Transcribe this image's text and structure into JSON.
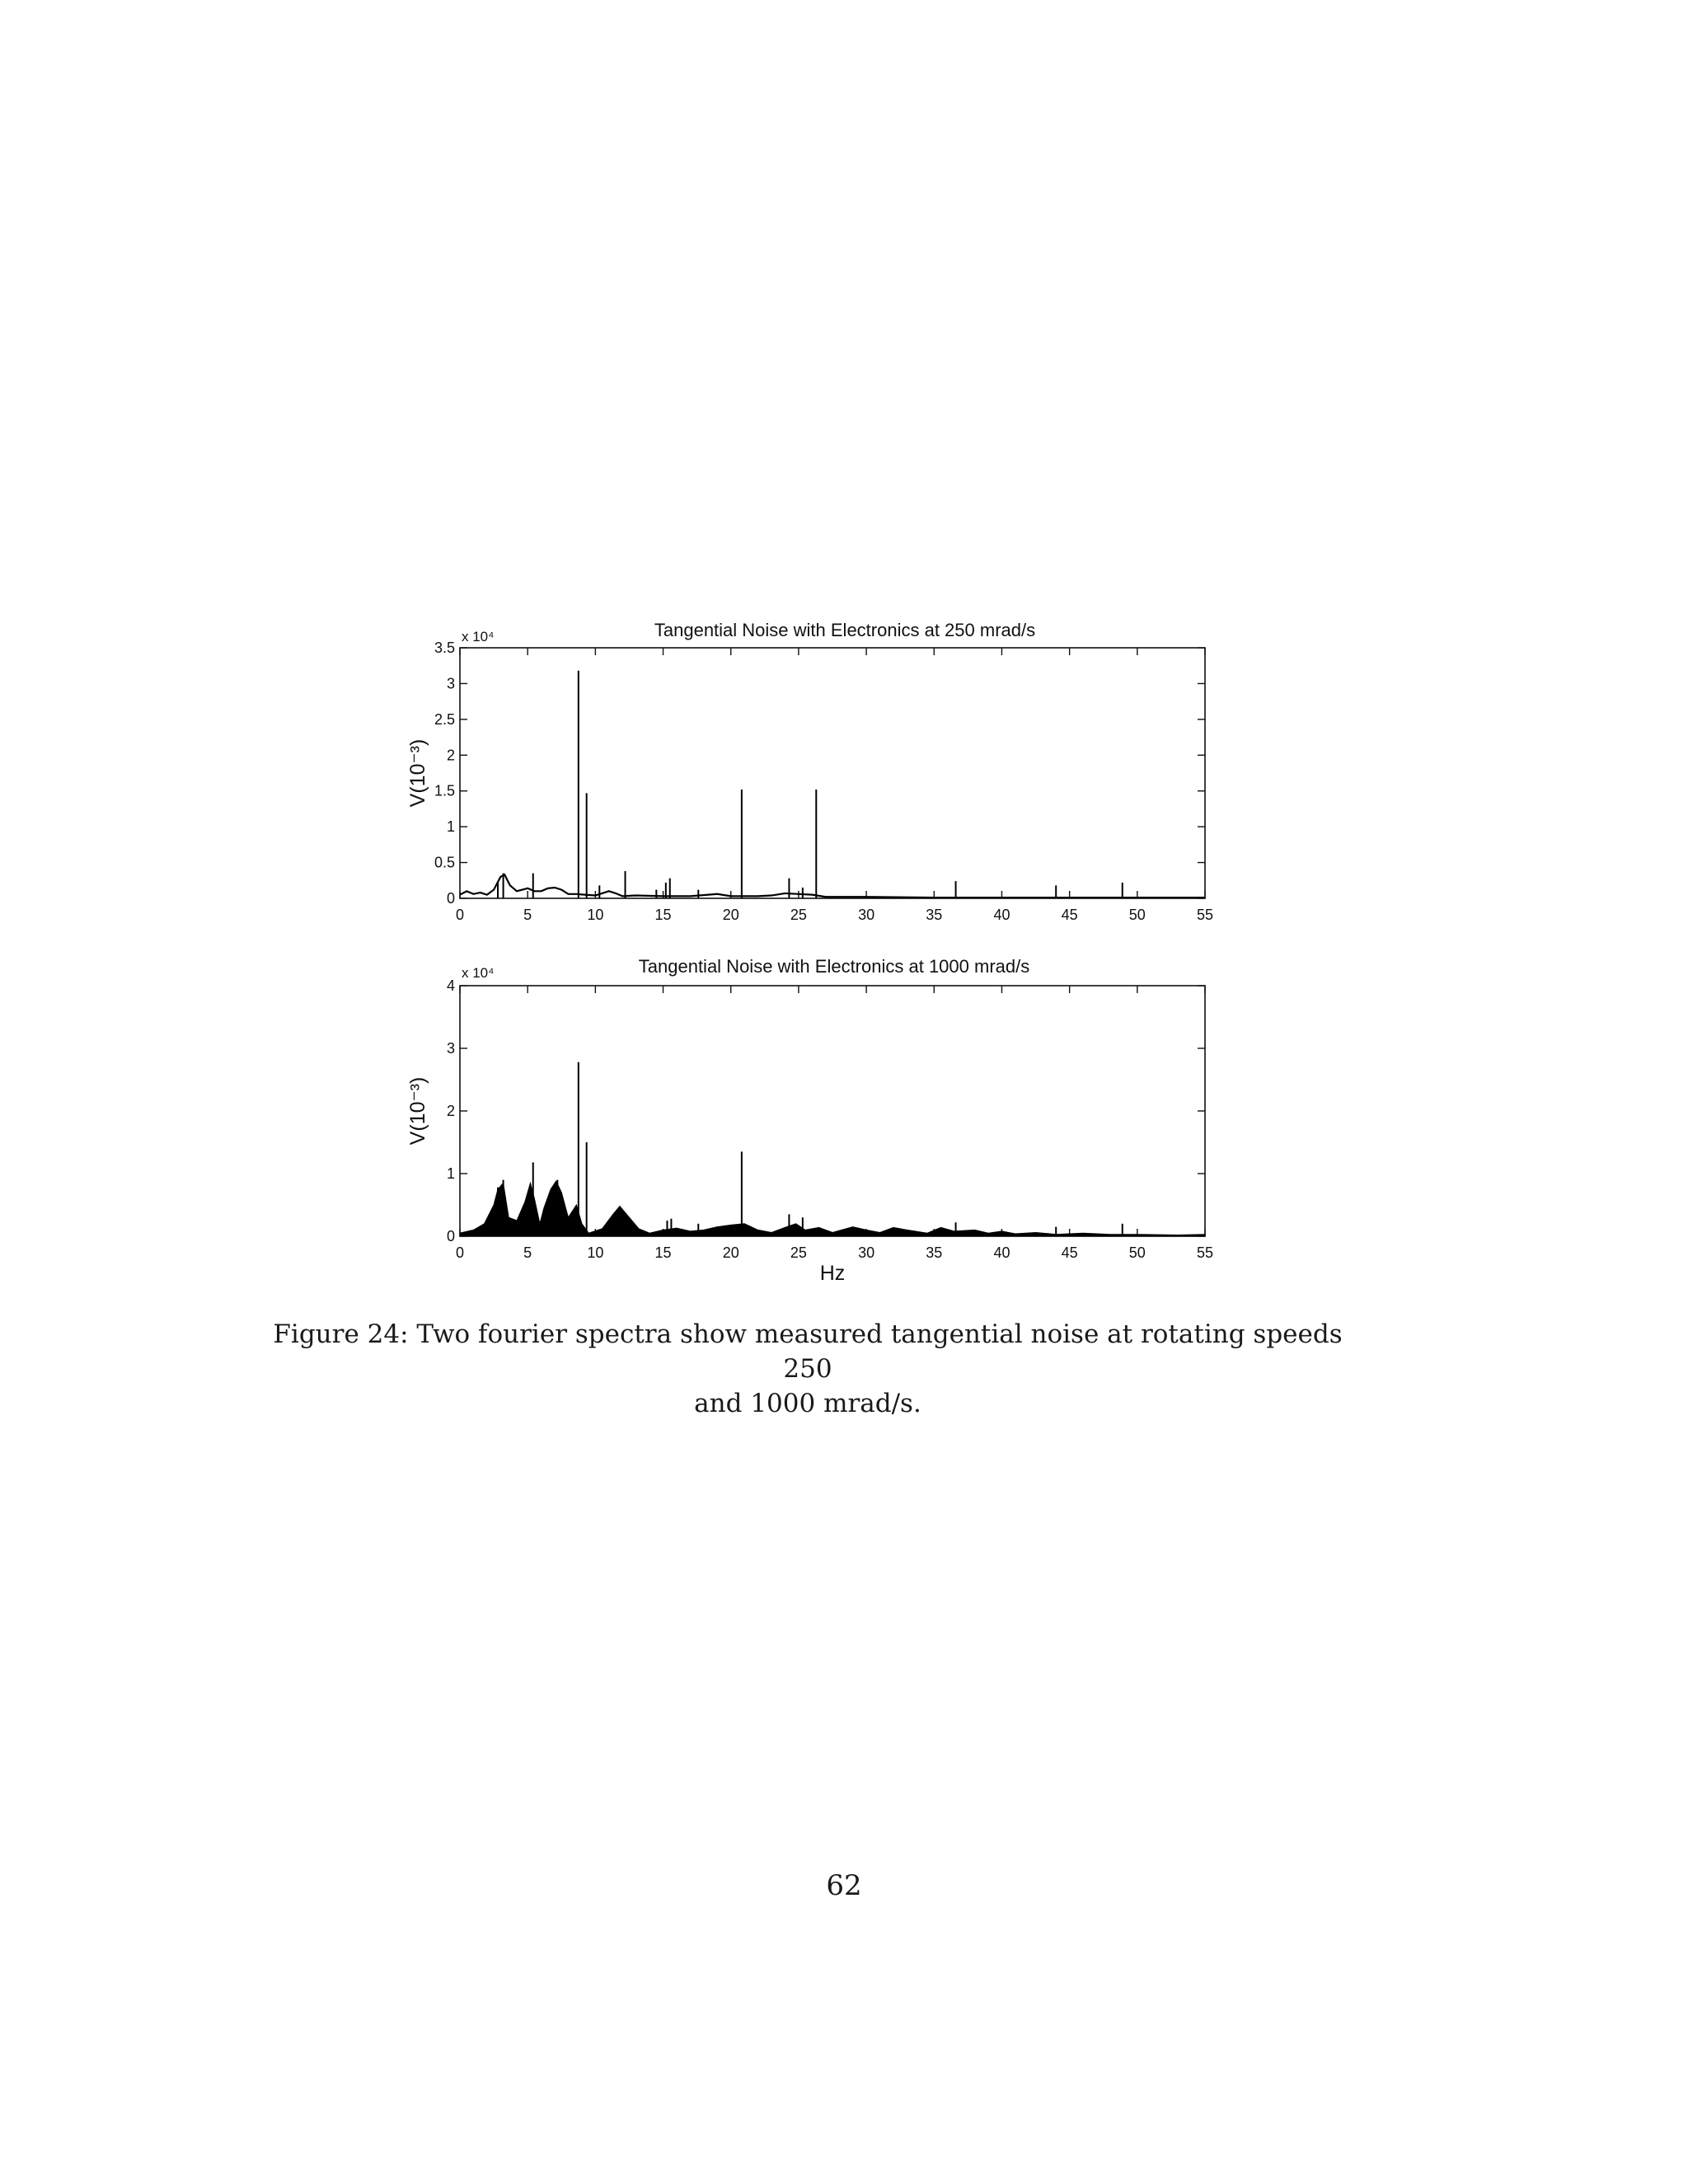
{
  "figure": {
    "caption_line1": "Figure 24: Two fourier spectra show measured tangential noise at rotating speeds 250",
    "caption_line2": "and 1000 mrad/s."
  },
  "page_number": "62",
  "chart_data": [
    {
      "type": "line",
      "title": "Tangential Noise with Electronics at 250 mrad/s",
      "ylabel": "V(10⁻³)",
      "xlabel": "",
      "multiplier_label": "x 10⁴",
      "xlim": [
        0,
        55
      ],
      "ylim": [
        0,
        3.5
      ],
      "xticks": [
        0,
        5,
        10,
        15,
        20,
        25,
        30,
        35,
        40,
        45,
        50,
        55
      ],
      "yticks": [
        "0",
        "0.5",
        "1",
        "1.5",
        "2",
        "2.5",
        "3",
        "3.5"
      ],
      "ytick_values": [
        0,
        0.5,
        1,
        1.5,
        2,
        2.5,
        3,
        3.5
      ],
      "grid": false,
      "color": "#000000",
      "baseline": [
        [
          0,
          0.05
        ],
        [
          0.5,
          0.1
        ],
        [
          1,
          0.06
        ],
        [
          1.5,
          0.08
        ],
        [
          2,
          0.05
        ],
        [
          2.5,
          0.12
        ],
        [
          3,
          0.3
        ],
        [
          3.3,
          0.33
        ],
        [
          3.7,
          0.18
        ],
        [
          4.2,
          0.1
        ],
        [
          5.0,
          0.14
        ],
        [
          5.5,
          0.1
        ],
        [
          6.0,
          0.1
        ],
        [
          6.5,
          0.14
        ],
        [
          7.0,
          0.15
        ],
        [
          7.5,
          0.12
        ],
        [
          8.0,
          0.06
        ],
        [
          8.6,
          0.06
        ],
        [
          9.2,
          0.05
        ],
        [
          10,
          0.04
        ],
        [
          11,
          0.1
        ],
        [
          11.5,
          0.07
        ],
        [
          12,
          0.03
        ],
        [
          13,
          0.04
        ],
        [
          15,
          0.03
        ],
        [
          17,
          0.03
        ],
        [
          19,
          0.06
        ],
        [
          20,
          0.03
        ],
        [
          22,
          0.03
        ],
        [
          23,
          0.04
        ],
        [
          24,
          0.07
        ],
        [
          25,
          0.06
        ],
        [
          26,
          0.05
        ],
        [
          27,
          0.02
        ],
        [
          30,
          0.02
        ],
        [
          35,
          0.01
        ],
        [
          40,
          0.01
        ],
        [
          45,
          0.01
        ],
        [
          50,
          0.01
        ],
        [
          55,
          0.01
        ]
      ],
      "peaks": [
        [
          2.8,
          0.22
        ],
        [
          3.2,
          0.35
        ],
        [
          5.4,
          0.35
        ],
        [
          8.75,
          3.18
        ],
        [
          9.35,
          1.47
        ],
        [
          10.3,
          0.18
        ],
        [
          12.2,
          0.38
        ],
        [
          14.5,
          0.12
        ],
        [
          15.2,
          0.22
        ],
        [
          15.5,
          0.28
        ],
        [
          17.6,
          0.12
        ],
        [
          20.8,
          1.52
        ],
        [
          24.3,
          0.28
        ],
        [
          25.3,
          0.15
        ],
        [
          26.3,
          1.52
        ],
        [
          36.6,
          0.24
        ],
        [
          44.0,
          0.18
        ],
        [
          48.9,
          0.22
        ]
      ]
    },
    {
      "type": "line",
      "title": "Tangential Noise with Electronics at 1000 mrad/s",
      "ylabel": "V(10⁻³)",
      "xlabel": "Hz",
      "multiplier_label": "x 10⁴",
      "xlim": [
        0,
        55
      ],
      "ylim": [
        0,
        4
      ],
      "xticks": [
        0,
        5,
        10,
        15,
        20,
        25,
        30,
        35,
        40,
        45,
        50,
        55
      ],
      "yticks": [
        "0",
        "1",
        "2",
        "3",
        "4"
      ],
      "ytick_values": [
        0,
        1,
        2,
        3,
        4
      ],
      "grid": false,
      "color": "#000000",
      "envelope": [
        [
          0,
          0.05
        ],
        [
          1,
          0.1
        ],
        [
          1.8,
          0.2
        ],
        [
          2.5,
          0.5
        ],
        [
          2.8,
          0.75
        ],
        [
          3.2,
          0.85
        ],
        [
          3.6,
          0.3
        ],
        [
          4.2,
          0.25
        ],
        [
          4.8,
          0.55
        ],
        [
          5.2,
          0.85
        ],
        [
          5.5,
          0.6
        ],
        [
          5.9,
          0.2
        ],
        [
          6.2,
          0.45
        ],
        [
          6.7,
          0.75
        ],
        [
          7.1,
          0.88
        ],
        [
          7.5,
          0.7
        ],
        [
          8.0,
          0.3
        ],
        [
          8.6,
          0.5
        ],
        [
          9.0,
          0.2
        ],
        [
          9.5,
          0.05
        ],
        [
          10.5,
          0.12
        ],
        [
          11.3,
          0.35
        ],
        [
          11.8,
          0.48
        ],
        [
          12.5,
          0.3
        ],
        [
          13.2,
          0.12
        ],
        [
          14,
          0.05
        ],
        [
          15,
          0.1
        ],
        [
          16,
          0.13
        ],
        [
          17,
          0.08
        ],
        [
          18,
          0.1
        ],
        [
          19,
          0.15
        ],
        [
          20,
          0.18
        ],
        [
          21,
          0.2
        ],
        [
          22,
          0.1
        ],
        [
          23,
          0.06
        ],
        [
          24,
          0.14
        ],
        [
          24.8,
          0.2
        ],
        [
          25.5,
          0.1
        ],
        [
          26.5,
          0.14
        ],
        [
          27.5,
          0.06
        ],
        [
          29,
          0.15
        ],
        [
          30,
          0.1
        ],
        [
          31,
          0.06
        ],
        [
          32,
          0.14
        ],
        [
          33,
          0.1
        ],
        [
          34.5,
          0.05
        ],
        [
          35.5,
          0.14
        ],
        [
          36.5,
          0.08
        ],
        [
          38,
          0.1
        ],
        [
          39,
          0.05
        ],
        [
          40,
          0.08
        ],
        [
          41,
          0.04
        ],
        [
          42.5,
          0.06
        ],
        [
          44,
          0.03
        ],
        [
          46,
          0.05
        ],
        [
          48,
          0.03
        ],
        [
          50,
          0.03
        ],
        [
          53,
          0.02
        ],
        [
          55,
          0.03
        ]
      ],
      "peaks": [
        [
          2.8,
          0.78
        ],
        [
          3.2,
          0.9
        ],
        [
          5.4,
          1.18
        ],
        [
          7.2,
          0.9
        ],
        [
          8.75,
          2.78
        ],
        [
          9.35,
          1.5
        ],
        [
          15.3,
          0.25
        ],
        [
          15.6,
          0.28
        ],
        [
          17.6,
          0.2
        ],
        [
          20.8,
          1.35
        ],
        [
          24.3,
          0.35
        ],
        [
          25.3,
          0.3
        ],
        [
          36.6,
          0.22
        ],
        [
          44.0,
          0.15
        ],
        [
          48.9,
          0.2
        ]
      ]
    }
  ]
}
